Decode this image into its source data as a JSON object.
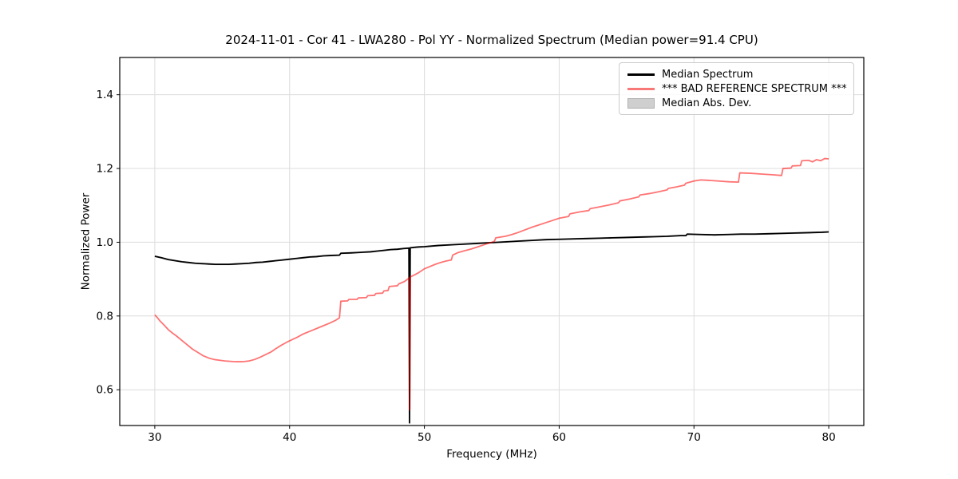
{
  "chart_data": {
    "type": "line",
    "title": "2024-11-01 - Cor 41 - LWA280 - Pol YY - Normalized Spectrum (Median power=91.4 CPU)",
    "xlabel": "Frequency (MHz)",
    "ylabel": "Normalized Power",
    "xlim": [
      27.4,
      82.6
    ],
    "ylim": [
      0.503,
      1.501
    ],
    "xticks": [
      30,
      40,
      50,
      60,
      70,
      80
    ],
    "xtick_labels": [
      "30",
      "40",
      "50",
      "60",
      "70",
      "80"
    ],
    "yticks": [
      0.6,
      0.8,
      1.0,
      1.2,
      1.4
    ],
    "ytick_labels": [
      "0.6",
      "0.8",
      "1.0",
      "1.2",
      "1.4"
    ],
    "grid": true,
    "grid_color": "#dcdcdc",
    "spine_color": "#000000",
    "legend_position": "upper right",
    "band": {
      "name": "Median Abs. Dev.",
      "color": "#cfcfcf",
      "halfwidth": 0.0025,
      "around_series": "Median Spectrum"
    },
    "series": [
      {
        "name": "Median Spectrum",
        "color": "#000000",
        "alpha": 1,
        "width": 1.8,
        "points": [
          [
            30,
            0.962
          ],
          [
            30.5,
            0.958
          ],
          [
            31,
            0.953
          ],
          [
            31.5,
            0.95
          ],
          [
            32,
            0.947
          ],
          [
            32.5,
            0.945
          ],
          [
            33,
            0.943
          ],
          [
            33.5,
            0.942
          ],
          [
            34,
            0.941
          ],
          [
            34.5,
            0.94
          ],
          [
            35,
            0.94
          ],
          [
            35.5,
            0.94
          ],
          [
            36,
            0.941
          ],
          [
            36.5,
            0.942
          ],
          [
            37,
            0.943
          ],
          [
            37.5,
            0.945
          ],
          [
            38,
            0.946
          ],
          [
            38.5,
            0.948
          ],
          [
            39,
            0.95
          ],
          [
            39.5,
            0.952
          ],
          [
            40,
            0.954
          ],
          [
            40.5,
            0.956
          ],
          [
            41,
            0.958
          ],
          [
            41.5,
            0.96
          ],
          [
            42,
            0.961
          ],
          [
            42.5,
            0.963
          ],
          [
            43,
            0.964
          ],
          [
            43.7,
            0.965
          ],
          [
            43.8,
            0.97
          ],
          [
            44.5,
            0.971
          ],
          [
            45,
            0.972
          ],
          [
            45.5,
            0.973
          ],
          [
            46,
            0.974
          ],
          [
            46.5,
            0.976
          ],
          [
            47,
            0.978
          ],
          [
            47.5,
            0.98
          ],
          [
            48,
            0.981
          ],
          [
            48.5,
            0.983
          ],
          [
            48.85,
            0.984
          ],
          [
            48.9,
            0.51
          ],
          [
            48.95,
            0.985
          ],
          [
            49.5,
            0.987
          ],
          [
            50,
            0.988
          ],
          [
            51,
            0.991
          ],
          [
            52,
            0.993
          ],
          [
            53,
            0.995
          ],
          [
            54,
            0.997
          ],
          [
            55,
            0.999
          ],
          [
            56,
            1.001
          ],
          [
            57,
            1.003
          ],
          [
            58,
            1.005
          ],
          [
            59,
            1.007
          ],
          [
            60,
            1.008
          ],
          [
            61,
            1.009
          ],
          [
            62,
            1.01
          ],
          [
            63,
            1.011
          ],
          [
            64,
            1.012
          ],
          [
            65,
            1.013
          ],
          [
            66,
            1.014
          ],
          [
            67,
            1.015
          ],
          [
            68,
            1.016
          ],
          [
            69,
            1.018
          ],
          [
            69.4,
            1.018
          ],
          [
            69.5,
            1.022
          ],
          [
            70.5,
            1.021
          ],
          [
            71.5,
            1.02
          ],
          [
            72.5,
            1.021
          ],
          [
            73.5,
            1.022
          ],
          [
            74.5,
            1.022
          ],
          [
            75.5,
            1.023
          ],
          [
            76.5,
            1.024
          ],
          [
            77.5,
            1.025
          ],
          [
            78.5,
            1.026
          ],
          [
            79.5,
            1.027
          ],
          [
            80,
            1.028
          ]
        ]
      },
      {
        "name": "*** BAD REFERENCE SPECTRUM ***",
        "color": "#ff0000",
        "alpha": 0.55,
        "width": 1.8,
        "points": [
          [
            30,
            0.803
          ],
          [
            30.2,
            0.795
          ],
          [
            30.4,
            0.786
          ],
          [
            30.7,
            0.775
          ],
          [
            31,
            0.763
          ],
          [
            31.3,
            0.754
          ],
          [
            31.6,
            0.746
          ],
          [
            32,
            0.734
          ],
          [
            32.4,
            0.722
          ],
          [
            32.8,
            0.71
          ],
          [
            33.2,
            0.701
          ],
          [
            33.6,
            0.692
          ],
          [
            34,
            0.686
          ],
          [
            34.4,
            0.682
          ],
          [
            34.8,
            0.68
          ],
          [
            35.2,
            0.678
          ],
          [
            35.6,
            0.677
          ],
          [
            36,
            0.676
          ],
          [
            36.5,
            0.676
          ],
          [
            37,
            0.678
          ],
          [
            37.4,
            0.682
          ],
          [
            37.8,
            0.688
          ],
          [
            38.2,
            0.695
          ],
          [
            38.6,
            0.702
          ],
          [
            39,
            0.712
          ],
          [
            39.4,
            0.721
          ],
          [
            39.8,
            0.729
          ],
          [
            40.2,
            0.736
          ],
          [
            40.6,
            0.743
          ],
          [
            41,
            0.751
          ],
          [
            41.4,
            0.757
          ],
          [
            41.8,
            0.763
          ],
          [
            42.2,
            0.769
          ],
          [
            42.6,
            0.775
          ],
          [
            43,
            0.781
          ],
          [
            43.4,
            0.788
          ],
          [
            43.7,
            0.795
          ],
          [
            43.8,
            0.84
          ],
          [
            44.3,
            0.841
          ],
          [
            44.4,
            0.845
          ],
          [
            45,
            0.845
          ],
          [
            45.1,
            0.849
          ],
          [
            45.7,
            0.85
          ],
          [
            45.8,
            0.855
          ],
          [
            46.3,
            0.856
          ],
          [
            46.4,
            0.861
          ],
          [
            46.9,
            0.862
          ],
          [
            47,
            0.868
          ],
          [
            47.3,
            0.869
          ],
          [
            47.4,
            0.88
          ],
          [
            48,
            0.882
          ],
          [
            48.1,
            0.887
          ],
          [
            48.5,
            0.893
          ],
          [
            48.8,
            0.901
          ],
          [
            48.88,
            0.903
          ],
          [
            48.92,
            0.545
          ],
          [
            48.96,
            0.906
          ],
          [
            49.3,
            0.912
          ],
          [
            49.6,
            0.918
          ],
          [
            50,
            0.928
          ],
          [
            50.4,
            0.934
          ],
          [
            50.8,
            0.94
          ],
          [
            51.2,
            0.945
          ],
          [
            51.6,
            0.949
          ],
          [
            52,
            0.952
          ],
          [
            52.1,
            0.965
          ],
          [
            52.5,
            0.972
          ],
          [
            53,
            0.977
          ],
          [
            53.5,
            0.982
          ],
          [
            54,
            0.988
          ],
          [
            54.5,
            0.994
          ],
          [
            55,
            1.0
          ],
          [
            55.2,
            1.003
          ],
          [
            55.3,
            1.012
          ],
          [
            56,
            1.016
          ],
          [
            56.5,
            1.021
          ],
          [
            57,
            1.027
          ],
          [
            57.5,
            1.034
          ],
          [
            58,
            1.041
          ],
          [
            58.5,
            1.047
          ],
          [
            59,
            1.053
          ],
          [
            59.5,
            1.059
          ],
          [
            60,
            1.065
          ],
          [
            60.7,
            1.07
          ],
          [
            60.8,
            1.077
          ],
          [
            61.5,
            1.082
          ],
          [
            62.2,
            1.086
          ],
          [
            62.3,
            1.091
          ],
          [
            63,
            1.096
          ],
          [
            63.7,
            1.101
          ],
          [
            64.4,
            1.107
          ],
          [
            64.5,
            1.112
          ],
          [
            65.2,
            1.117
          ],
          [
            65.9,
            1.123
          ],
          [
            66,
            1.128
          ],
          [
            66.7,
            1.132
          ],
          [
            67.4,
            1.137
          ],
          [
            68,
            1.142
          ],
          [
            68.1,
            1.146
          ],
          [
            68.7,
            1.15
          ],
          [
            69.3,
            1.155
          ],
          [
            69.4,
            1.16
          ],
          [
            70,
            1.166
          ],
          [
            70.5,
            1.169
          ],
          [
            71,
            1.168
          ],
          [
            71.8,
            1.166
          ],
          [
            72.6,
            1.164
          ],
          [
            73.3,
            1.163
          ],
          [
            73.4,
            1.188
          ],
          [
            74.2,
            1.187
          ],
          [
            75,
            1.185
          ],
          [
            75.8,
            1.183
          ],
          [
            76.5,
            1.181
          ],
          [
            76.6,
            1.2
          ],
          [
            77.2,
            1.201
          ],
          [
            77.3,
            1.207
          ],
          [
            77.9,
            1.208
          ],
          [
            78,
            1.221
          ],
          [
            78.5,
            1.222
          ],
          [
            78.8,
            1.218
          ],
          [
            79.1,
            1.224
          ],
          [
            79.4,
            1.221
          ],
          [
            79.7,
            1.227
          ],
          [
            80,
            1.226
          ]
        ]
      }
    ],
    "legend": {
      "entries": [
        {
          "label": "Median Spectrum",
          "swatch": "line",
          "display_color": "#000000"
        },
        {
          "label": "*** BAD REFERENCE SPECTRUM ***",
          "swatch": "line",
          "display_color": "#f87878"
        },
        {
          "label": "Median Abs. Dev.",
          "swatch": "patch",
          "display_color": "#cfcfcf"
        }
      ]
    }
  }
}
